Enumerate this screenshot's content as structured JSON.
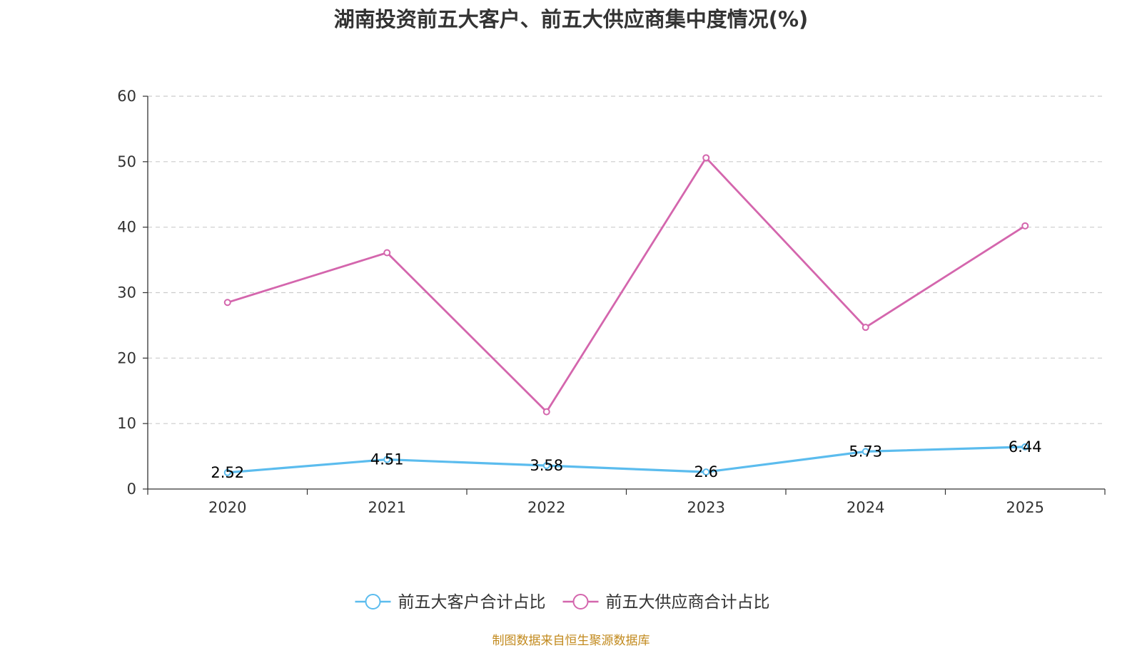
{
  "chart_data": {
    "type": "line",
    "title": "湖南投资前五大客户、前五大供应商集中度情况(%)",
    "categories": [
      "2020",
      "2021",
      "2022",
      "2023",
      "2024",
      "2025"
    ],
    "ylim": [
      0,
      60
    ],
    "yticks": [
      "0",
      "10",
      "20",
      "30",
      "40",
      "50",
      "60"
    ],
    "grid": true,
    "legend_position": "bottom-center",
    "series": [
      {
        "name": "前五大客户合计占比",
        "color": "#5bbcee",
        "values": [
          2.52,
          4.51,
          3.58,
          2.6,
          5.73,
          6.44
        ],
        "labels": [
          "2.52",
          "4.51",
          "3.58",
          "2.6",
          "5.73",
          "6.44"
        ],
        "show_labels": true
      },
      {
        "name": "前五大供应商合计占比",
        "color": "#d466ad",
        "values": [
          28.5,
          36.1,
          11.8,
          50.6,
          24.7,
          40.2
        ],
        "show_labels": false
      }
    ]
  },
  "source": "制图数据来自恒生聚源数据库"
}
